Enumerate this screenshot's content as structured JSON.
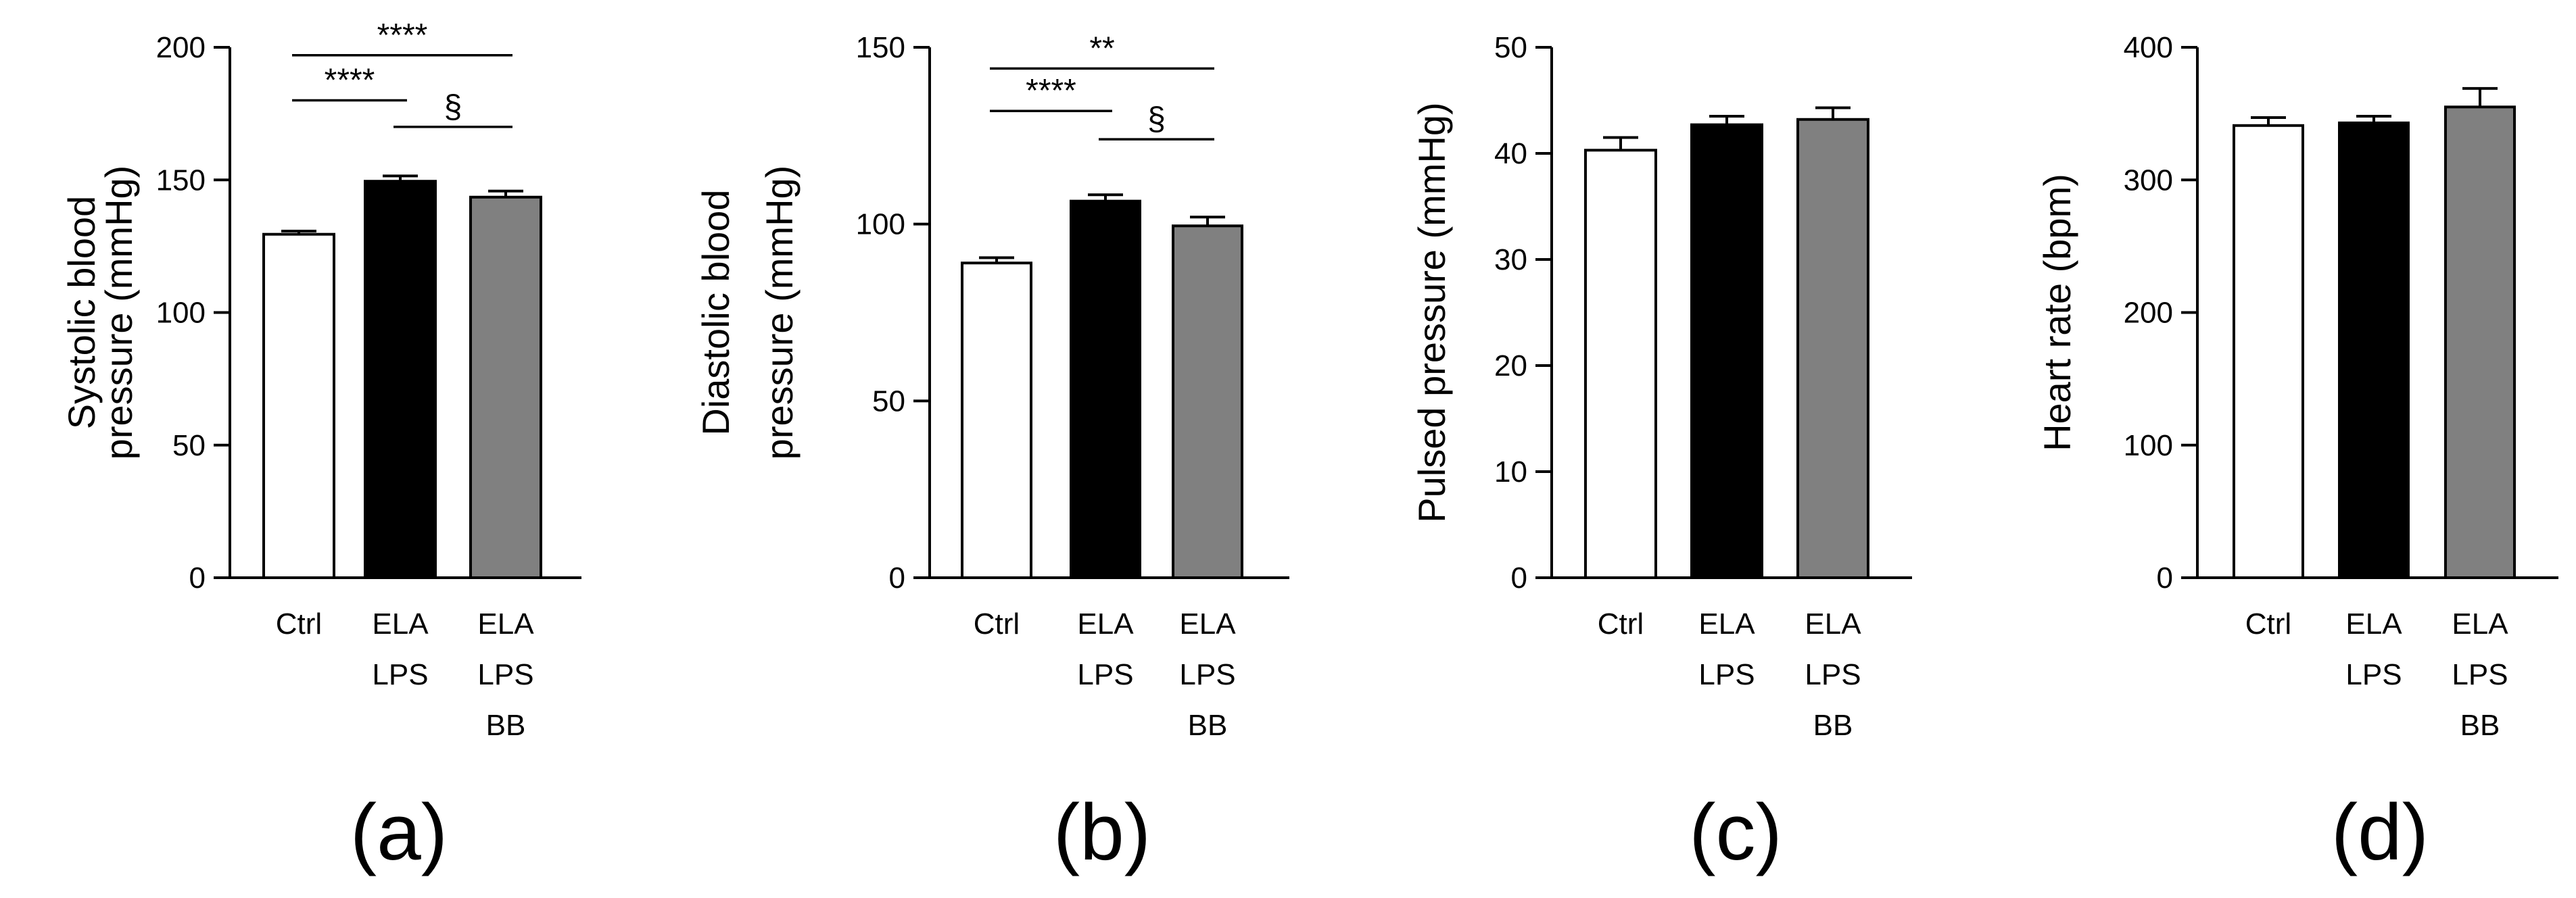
{
  "figure_title": "",
  "chart_data": [
    {
      "type": "bar",
      "panel_label": "(a)",
      "ylabel_lines": [
        "Systolic blood",
        "pressure (mmHg)"
      ],
      "ylim": [
        0,
        200
      ],
      "yticks": [
        0,
        50,
        100,
        150,
        200
      ],
      "categories": [
        [
          "Ctrl"
        ],
        [
          "ELA",
          "LPS"
        ],
        [
          "ELA",
          "LPS",
          "BB"
        ]
      ],
      "values": [
        129.5,
        149.5,
        143.5
      ],
      "errors": [
        1.2,
        2.0,
        2.3
      ],
      "bar_colors": [
        "#ffffff",
        "#000000",
        "#808080"
      ],
      "significance": [
        {
          "from": 0,
          "to": 1,
          "label": "****",
          "y": 180
        },
        {
          "from": 0,
          "to": 2,
          "label": "****",
          "y": 197
        },
        {
          "from": 1,
          "to": 2,
          "label": "§",
          "y": 170
        }
      ]
    },
    {
      "type": "bar",
      "panel_label": "(b)",
      "ylabel_lines": [
        "Diastolic blood",
        "pressure (mmHg)"
      ],
      "ylim": [
        0,
        150
      ],
      "yticks": [
        0,
        50,
        100,
        150
      ],
      "categories": [
        [
          "Ctrl"
        ],
        [
          "ELA",
          "LPS"
        ],
        [
          "ELA",
          "LPS",
          "BB"
        ]
      ],
      "values": [
        89,
        106.5,
        99.5
      ],
      "errors": [
        1.5,
        1.8,
        2.5
      ],
      "bar_colors": [
        "#ffffff",
        "#000000",
        "#808080"
      ],
      "significance": [
        {
          "from": 0,
          "to": 1,
          "label": "****",
          "y": 132
        },
        {
          "from": 0,
          "to": 2,
          "label": "**",
          "y": 144
        },
        {
          "from": 1,
          "to": 2,
          "label": "§",
          "y": 124
        }
      ]
    },
    {
      "type": "bar",
      "panel_label": "(c)",
      "ylabel_lines": [
        "Pulsed pressure (mmHg)"
      ],
      "ylim": [
        0,
        50
      ],
      "yticks": [
        0,
        10,
        20,
        30,
        40,
        50
      ],
      "categories": [
        [
          "Ctrl"
        ],
        [
          "ELA",
          "LPS"
        ],
        [
          "ELA",
          "LPS",
          "BB"
        ]
      ],
      "values": [
        40.3,
        42.7,
        43.2
      ],
      "errors": [
        1.2,
        0.8,
        1.1
      ],
      "bar_colors": [
        "#ffffff",
        "#000000",
        "#808080"
      ],
      "significance": []
    },
    {
      "type": "bar",
      "panel_label": "(d)",
      "ylabel_lines": [
        "Heart rate (bpm)"
      ],
      "ylim": [
        0,
        400
      ],
      "yticks": [
        0,
        100,
        200,
        300,
        400
      ],
      "categories": [
        [
          "Ctrl"
        ],
        [
          "ELA",
          "LPS"
        ],
        [
          "ELA",
          "LPS",
          "BB"
        ]
      ],
      "values": [
        341,
        343,
        355
      ],
      "errors": [
        6,
        5,
        14
      ],
      "bar_colors": [
        "#ffffff",
        "#000000",
        "#808080"
      ],
      "significance": []
    }
  ]
}
